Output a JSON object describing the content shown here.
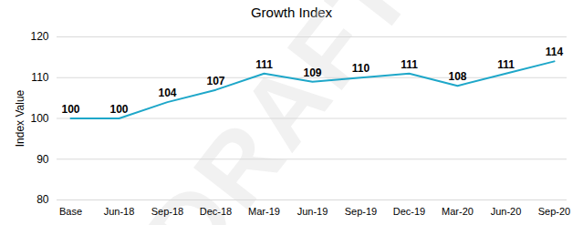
{
  "chart_data": {
    "type": "line",
    "title": "Growth Index",
    "y_label": "Index Value",
    "annotations": [
      "DRAFT"
    ],
    "categories": [
      "Base",
      "Jun-18",
      "Sep-18",
      "Dec-18",
      "Mar-19",
      "Jun-19",
      "Sep-19",
      "Dec-19",
      "Mar-20",
      "Jun-20",
      "Sep-20"
    ],
    "values": [
      100,
      100,
      104,
      107,
      111,
      109,
      110,
      111,
      108,
      111,
      114
    ],
    "color": "#1ea7c9",
    "ylim": [
      80,
      120
    ],
    "yticks": [
      80,
      90,
      100,
      110,
      120
    ],
    "grid": true,
    "data_labels": true
  }
}
